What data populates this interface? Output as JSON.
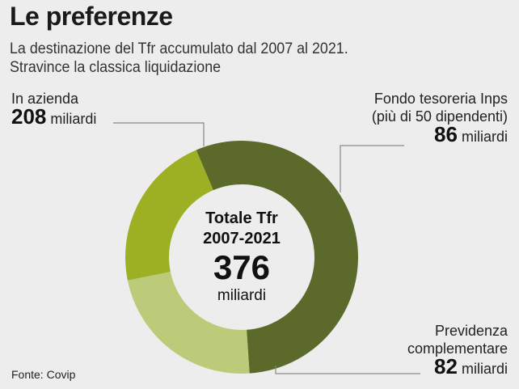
{
  "title": "Le preferenze",
  "subtitle_line1": "La destinazione del Tfr accumulato dal 2007 al 2021.",
  "subtitle_line2": "Stravince la classica liquidazione",
  "source": "Fonte: Covip",
  "center": {
    "line1": "Totale Tfr",
    "line2": "2007-2021",
    "total": "376",
    "unit": "miliardi"
  },
  "colors": {
    "azienda": "#5b6a2b",
    "inps": "#bccb7a",
    "previdenza": "#9db024",
    "leader": "#888888"
  },
  "labels": {
    "azienda": {
      "name": "In azienda",
      "value": "208",
      "unit": "miliardi"
    },
    "inps": {
      "name_line1": "Fondo tesoreria Inps",
      "name_line2": "(più di 50 dipendenti)",
      "value": "86",
      "unit": "miliardi"
    },
    "previdenza": {
      "name_line1": "Previdenza",
      "name_line2": "complementare",
      "value": "82",
      "unit": "miliardi"
    }
  },
  "chart_data": {
    "type": "pie",
    "variant": "donut",
    "title": "Le preferenze",
    "total": 376,
    "unit": "miliardi",
    "categories": [
      "In azienda",
      "Fondo tesoreria Inps (più di 50 dipendenti)",
      "Previdenza complementare"
    ],
    "values": [
      208,
      86,
      82
    ],
    "legend": "none"
  }
}
